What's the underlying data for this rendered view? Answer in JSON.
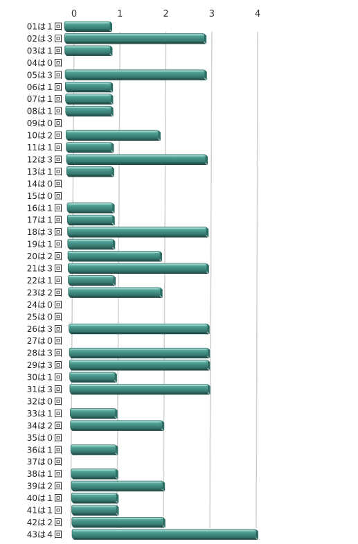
{
  "chart_data": {
    "type": "bar",
    "orientation": "horizontal",
    "xlim": [
      0,
      4
    ],
    "x_ticks": [
      "0",
      "1",
      "2",
      "3",
      "4"
    ],
    "grid": true,
    "bar_color": "#3f8f84",
    "categories": [
      "01は１回",
      "02は３回",
      "03は１回",
      "04は０回",
      "05は３回",
      "06は１回",
      "07は１回",
      "08は１回",
      "09は０回",
      "10は２回",
      "11は１回",
      "12は３回",
      "13は１回",
      "14は０回",
      "15は０回",
      "16は１回",
      "17は１回",
      "18は３回",
      "19は１回",
      "20は２回",
      "21は３回",
      "22は１回",
      "23は２回",
      "24は０回",
      "25は０回",
      "26は３回",
      "27は０回",
      "28は３回",
      "29は３回",
      "30は１回",
      "31は３回",
      "32は０回",
      "33は１回",
      "34は２回",
      "35は０回",
      "36は１回",
      "37は０回",
      "38は１回",
      "39は２回",
      "40は１回",
      "41は１回",
      "42は２回",
      "43は４回"
    ],
    "values": [
      1,
      3,
      1,
      0,
      3,
      1,
      1,
      1,
      0,
      2,
      1,
      3,
      1,
      0,
      0,
      1,
      1,
      3,
      1,
      2,
      3,
      1,
      2,
      0,
      0,
      3,
      0,
      3,
      3,
      1,
      3,
      0,
      1,
      2,
      0,
      1,
      0,
      1,
      2,
      1,
      1,
      2,
      4
    ]
  }
}
